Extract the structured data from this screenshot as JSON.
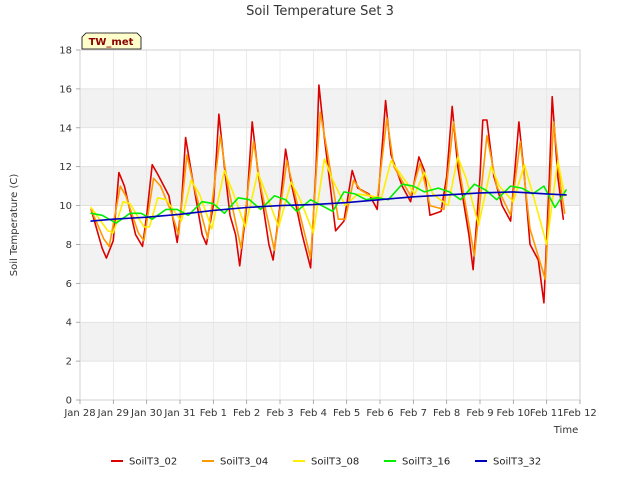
{
  "chart_data": {
    "type": "line",
    "title": "Soil Temperature Set 3",
    "xlabel": "Time",
    "ylabel": "Soil Temperature (C)",
    "badge": "TW_met",
    "x_ticks": [
      "Jan 28",
      "Jan 29",
      "Jan 30",
      "Jan 31",
      "Feb 1",
      "Feb 2",
      "Feb 3",
      "Feb 4",
      "Feb 5",
      "Feb 6",
      "Feb 7",
      "Feb 8",
      "Feb 9",
      "Feb 10",
      "Feb 11",
      "Feb 12"
    ],
    "xlim": [
      "Jan 28",
      "Feb 12"
    ],
    "ylim": [
      0,
      18
    ],
    "y_ticks": [
      0,
      2,
      4,
      6,
      8,
      10,
      12,
      14,
      16,
      18
    ],
    "grid": "horizontal bands",
    "legend_position": "bottom",
    "series": [
      {
        "name": "SoilT3_02",
        "color": "#dd0000",
        "points": [
          [
            "Jan 28 08:00",
            9.8
          ],
          [
            "Jan 28 16:00",
            7.8
          ],
          [
            "Jan 28 19:00",
            7.3
          ],
          [
            "Jan 29 00:00",
            8.2
          ],
          [
            "Jan 29 04:00",
            11.7
          ],
          [
            "Jan 29 08:00",
            11.0
          ],
          [
            "Jan 29 16:00",
            8.5
          ],
          [
            "Jan 29 21:00",
            7.9
          ],
          [
            "Jan 30 00:00",
            9.5
          ],
          [
            "Jan 30 04:00",
            12.1
          ],
          [
            "Jan 30 08:00",
            11.6
          ],
          [
            "Jan 30 16:00",
            10.5
          ],
          [
            "Jan 30 22:00",
            8.1
          ],
          [
            "Jan 31 01:00",
            10.0
          ],
          [
            "Jan 31 04:00",
            13.5
          ],
          [
            "Jan 31 08:00",
            11.8
          ],
          [
            "Jan 31 16:00",
            8.5
          ],
          [
            "Jan 31 19:00",
            8.0
          ],
          [
            "Feb 1 00:00",
            10.0
          ],
          [
            "Feb 1 04:00",
            14.7
          ],
          [
            "Feb 1 08:00",
            12.0
          ],
          [
            "Feb 1 12:00",
            9.5
          ],
          [
            "Feb 1 16:00",
            8.5
          ],
          [
            "Feb 1 19:00",
            6.9
          ],
          [
            "Feb 2 00:00",
            10.0
          ],
          [
            "Feb 2 04:00",
            14.3
          ],
          [
            "Feb 2 08:00",
            11.8
          ],
          [
            "Feb 2 16:00",
            8.0
          ],
          [
            "Feb 2 19:00",
            7.2
          ],
          [
            "Feb 3 00:00",
            10.0
          ],
          [
            "Feb 3 04:00",
            12.9
          ],
          [
            "Feb 3 08:00",
            11.2
          ],
          [
            "Feb 3 16:00",
            8.5
          ],
          [
            "Feb 3 22:00",
            6.8
          ],
          [
            "Feb 4 02:00",
            12.0
          ],
          [
            "Feb 4 04:00",
            16.2
          ],
          [
            "Feb 4 08:00",
            13.5
          ],
          [
            "Feb 4 16:00",
            8.7
          ],
          [
            "Feb 4 22:00",
            9.2
          ],
          [
            "Feb 5 01:00",
            10.5
          ],
          [
            "Feb 5 04:00",
            11.8
          ],
          [
            "Feb 5 08:00",
            10.9
          ],
          [
            "Feb 5 16:00",
            10.6
          ],
          [
            "Feb 5 22:00",
            9.8
          ],
          [
            "Feb 6 01:00",
            12.5
          ],
          [
            "Feb 6 04:00",
            15.4
          ],
          [
            "Feb 6 08:00",
            12.6
          ],
          [
            "Feb 6 16:00",
            11.0
          ],
          [
            "Feb 6 22:00",
            10.2
          ],
          [
            "Feb 7 04:00",
            12.5
          ],
          [
            "Feb 7 08:00",
            11.8
          ],
          [
            "Feb 7 12:00",
            9.5
          ],
          [
            "Feb 7 20:00",
            9.7
          ],
          [
            "Feb 8 00:00",
            11.5
          ],
          [
            "Feb 8 04:00",
            15.1
          ],
          [
            "Feb 8 08:00",
            12.0
          ],
          [
            "Feb 8 16:00",
            8.5
          ],
          [
            "Feb 8 19:00",
            6.7
          ],
          [
            "Feb 9 00:00",
            11.5
          ],
          [
            "Feb 9 02:00",
            14.4
          ],
          [
            "Feb 9 05:00",
            14.4
          ],
          [
            "Feb 9 10:00",
            11.5
          ],
          [
            "Feb 9 16:00",
            10.0
          ],
          [
            "Feb 9 22:00",
            9.2
          ],
          [
            "Feb 10 04:00",
            14.3
          ],
          [
            "Feb 10 08:00",
            11.5
          ],
          [
            "Feb 10 12:00",
            8.0
          ],
          [
            "Feb 10 18:00",
            7.2
          ],
          [
            "Feb 10 22:00",
            5.0
          ],
          [
            "Feb 11 02:00",
            11.5
          ],
          [
            "Feb 11 04:00",
            15.6
          ],
          [
            "Feb 11 08:00",
            11.5
          ],
          [
            "Feb 11 12:00",
            9.3
          ]
        ]
      },
      {
        "name": "SoilT3_04",
        "color": "#ff9900",
        "points": [
          [
            "Jan 28 08:00",
            9.8
          ],
          [
            "Jan 28 17:00",
            8.3
          ],
          [
            "Jan 28 21:00",
            7.9
          ],
          [
            "Jan 29 05:00",
            11.0
          ],
          [
            "Jan 29 09:00",
            10.5
          ],
          [
            "Jan 29 18:00",
            8.6
          ],
          [
            "Jan 29 22:00",
            8.2
          ],
          [
            "Jan 30 05:00",
            11.4
          ],
          [
            "Jan 30 10:00",
            11.0
          ],
          [
            "Jan 30 18:00",
            9.6
          ],
          [
            "Jan 30 23:00",
            8.5
          ],
          [
            "Jan 31 05:00",
            12.6
          ],
          [
            "Jan 31 10:00",
            11.0
          ],
          [
            "Jan 31 20:00",
            8.3
          ],
          [
            "Feb 1 05:00",
            13.6
          ],
          [
            "Feb 1 10:00",
            11.2
          ],
          [
            "Feb 1 20:00",
            7.8
          ],
          [
            "Feb 2 05:00",
            13.3
          ],
          [
            "Feb 2 10:00",
            11.0
          ],
          [
            "Feb 2 20:00",
            7.7
          ],
          [
            "Feb 3 05:00",
            12.3
          ],
          [
            "Feb 3 10:00",
            10.8
          ],
          [
            "Feb 3 22:00",
            7.3
          ],
          [
            "Feb 4 05:00",
            14.8
          ],
          [
            "Feb 4 10:00",
            12.8
          ],
          [
            "Feb 4 18:00",
            9.3
          ],
          [
            "Feb 4 23:00",
            9.3
          ],
          [
            "Feb 5 05:00",
            11.3
          ],
          [
            "Feb 5 10:00",
            10.8
          ],
          [
            "Feb 5 22:00",
            10.3
          ],
          [
            "Feb 6 05:00",
            14.5
          ],
          [
            "Feb 6 10:00",
            12.0
          ],
          [
            "Feb 6 22:00",
            10.5
          ],
          [
            "Feb 7 05:00",
            12.2
          ],
          [
            "Feb 7 12:00",
            10.0
          ],
          [
            "Feb 7 22:00",
            9.8
          ],
          [
            "Feb 8 05:00",
            14.3
          ],
          [
            "Feb 8 10:00",
            11.5
          ],
          [
            "Feb 8 20:00",
            7.4
          ],
          [
            "Feb 9 05:00",
            13.6
          ],
          [
            "Feb 9 12:00",
            11.0
          ],
          [
            "Feb 9 22:00",
            9.5
          ],
          [
            "Feb 10 05:00",
            13.3
          ],
          [
            "Feb 10 12:00",
            8.8
          ],
          [
            "Feb 10 23:00",
            6.2
          ],
          [
            "Feb 11 05:00",
            14.3
          ],
          [
            "Feb 11 10:00",
            11.0
          ],
          [
            "Feb 11 13:00",
            9.6
          ]
        ]
      },
      {
        "name": "SoilT3_08",
        "color": "#ffee00",
        "points": [
          [
            "Jan 28 08:00",
            9.9
          ],
          [
            "Jan 28 20:00",
            8.7
          ],
          [
            "Jan 29 00:00",
            8.6
          ],
          [
            "Jan 29 07:00",
            10.2
          ],
          [
            "Jan 29 12:00",
            10.1
          ],
          [
            "Jan 29 22:00",
            8.9
          ],
          [
            "Jan 30 02:00",
            8.9
          ],
          [
            "Jan 30 08:00",
            10.4
          ],
          [
            "Jan 30 14:00",
            10.3
          ],
          [
            "Jan 31 01:00",
            9.2
          ],
          [
            "Jan 31 08:00",
            11.3
          ],
          [
            "Jan 31 14:00",
            10.6
          ],
          [
            "Jan 31 23:00",
            8.8
          ],
          [
            "Feb 1 08:00",
            11.8
          ],
          [
            "Feb 1 14:00",
            10.7
          ],
          [
            "Feb 1 23:00",
            8.9
          ],
          [
            "Feb 2 08:00",
            11.7
          ],
          [
            "Feb 2 14:00",
            10.6
          ],
          [
            "Feb 2 23:00",
            8.9
          ],
          [
            "Feb 3 08:00",
            11.2
          ],
          [
            "Feb 3 14:00",
            10.4
          ],
          [
            "Feb 4 00:00",
            8.6
          ],
          [
            "Feb 4 08:00",
            12.4
          ],
          [
            "Feb 4 14:00",
            11.3
          ],
          [
            "Feb 4 23:00",
            10.0
          ],
          [
            "Feb 5 08:00",
            10.6
          ],
          [
            "Feb 5 16:00",
            10.5
          ],
          [
            "Feb 6 01:00",
            10.4
          ],
          [
            "Feb 6 08:00",
            12.3
          ],
          [
            "Feb 6 14:00",
            11.7
          ],
          [
            "Feb 7 01:00",
            10.6
          ],
          [
            "Feb 7 08:00",
            11.7
          ],
          [
            "Feb 7 14:00",
            10.6
          ],
          [
            "Feb 8 01:00",
            10.0
          ],
          [
            "Feb 8 08:00",
            12.5
          ],
          [
            "Feb 8 14:00",
            11.4
          ],
          [
            "Feb 8 23:00",
            9.0
          ],
          [
            "Feb 9 08:00",
            12.0
          ],
          [
            "Feb 9 14:00",
            11.0
          ],
          [
            "Feb 10 00:00",
            10.2
          ],
          [
            "Feb 10 08:00",
            12.1
          ],
          [
            "Feb 10 14:00",
            10.6
          ],
          [
            "Feb 11 00:00",
            8.0
          ],
          [
            "Feb 11 08:00",
            12.3
          ],
          [
            "Feb 11 13:00",
            10.5
          ]
        ]
      },
      {
        "name": "SoilT3_16",
        "color": "#00ee00",
        "points": [
          [
            "Jan 28 08:00",
            9.6
          ],
          [
            "Jan 28 16:00",
            9.5
          ],
          [
            "Jan 29 02:00",
            9.1
          ],
          [
            "Jan 29 12:00",
            9.6
          ],
          [
            "Jan 29 20:00",
            9.6
          ],
          [
            "Jan 30 04:00",
            9.3
          ],
          [
            "Jan 30 14:00",
            9.8
          ],
          [
            "Jan 30 22:00",
            9.8
          ],
          [
            "Jan 31 06:00",
            9.5
          ],
          [
            "Jan 31 16:00",
            10.2
          ],
          [
            "Feb 1 00:00",
            10.1
          ],
          [
            "Feb 1 08:00",
            9.6
          ],
          [
            "Feb 1 18:00",
            10.4
          ],
          [
            "Feb 2 02:00",
            10.3
          ],
          [
            "Feb 2 10:00",
            9.8
          ],
          [
            "Feb 2 20:00",
            10.5
          ],
          [
            "Feb 3 04:00",
            10.3
          ],
          [
            "Feb 3 12:00",
            9.7
          ],
          [
            "Feb 3 22:00",
            10.3
          ],
          [
            "Feb 4 06:00",
            10.0
          ],
          [
            "Feb 4 14:00",
            9.7
          ],
          [
            "Feb 4 22:00",
            10.7
          ],
          [
            "Feb 5 06:00",
            10.6
          ],
          [
            "Feb 5 14:00",
            10.3
          ],
          [
            "Feb 5 22:00",
            10.4
          ],
          [
            "Feb 6 06:00",
            10.3
          ],
          [
            "Feb 6 16:00",
            11.1
          ],
          [
            "Feb 7 00:00",
            11.0
          ],
          [
            "Feb 7 08:00",
            10.7
          ],
          [
            "Feb 7 18:00",
            10.9
          ],
          [
            "Feb 8 02:00",
            10.7
          ],
          [
            "Feb 8 10:00",
            10.3
          ],
          [
            "Feb 8 20:00",
            11.1
          ],
          [
            "Feb 9 04:00",
            10.8
          ],
          [
            "Feb 9 12:00",
            10.3
          ],
          [
            "Feb 9 22:00",
            11.0
          ],
          [
            "Feb 10 06:00",
            10.9
          ],
          [
            "Feb 10 14:00",
            10.6
          ],
          [
            "Feb 10 22:00",
            11.0
          ],
          [
            "Feb 11 06:00",
            9.9
          ],
          [
            "Feb 11 14:00",
            10.8
          ]
        ]
      },
      {
        "name": "SoilT3_32",
        "color": "#0000bb",
        "points": [
          [
            "Jan 28 08:00",
            9.2
          ],
          [
            "Jan 29 00:00",
            9.3
          ],
          [
            "Jan 30 00:00",
            9.4
          ],
          [
            "Jan 31 00:00",
            9.55
          ],
          [
            "Feb 1 00:00",
            9.75
          ],
          [
            "Feb 2 00:00",
            9.9
          ],
          [
            "Feb 3 00:00",
            10.0
          ],
          [
            "Feb 4 00:00",
            10.05
          ],
          [
            "Feb 5 00:00",
            10.15
          ],
          [
            "Feb 6 00:00",
            10.3
          ],
          [
            "Feb 7 00:00",
            10.45
          ],
          [
            "Feb 8 00:00",
            10.55
          ],
          [
            "Feb 9 00:00",
            10.65
          ],
          [
            "Feb 10 00:00",
            10.7
          ],
          [
            "Feb 11 00:00",
            10.6
          ],
          [
            "Feb 11 14:00",
            10.55
          ]
        ]
      }
    ]
  }
}
